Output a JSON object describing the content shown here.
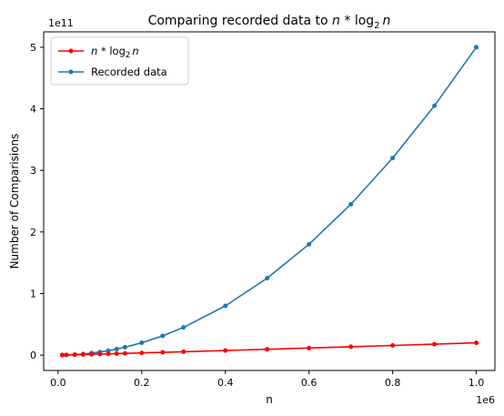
{
  "chart_data": {
    "type": "line",
    "title": {
      "prefix": "Comparing recorded data to ",
      "var_n": "n",
      "op": " * ",
      "log": "log",
      "log_base": "2",
      "var_n2": "n"
    },
    "xlabel": "n",
    "ylabel": "Number of Comparisions",
    "x_offset_label": "1e6",
    "y_offset_label": "1e11",
    "xlim": [
      -0.0345,
      1.0445
    ],
    "ylim": [
      -0.25,
      5.25
    ],
    "x_ticks": [
      0.0,
      0.2,
      0.4,
      0.6,
      0.8,
      1.0
    ],
    "x_tick_labels": [
      "0.0",
      "0.2",
      "0.4",
      "0.6",
      "0.8",
      "1.0"
    ],
    "y_ticks": [
      0,
      1,
      2,
      3,
      4,
      5
    ],
    "y_tick_labels": [
      "0",
      "1",
      "2",
      "3",
      "4",
      "5"
    ],
    "x_scale_note": "x values in units of 1e6",
    "y_scale_note": "y values in units of 1e11",
    "legend_position": "top-left",
    "grid": false,
    "series": [
      {
        "name": "n * log2 n",
        "legend": {
          "var_n": "n",
          "op": " * ",
          "log": "log",
          "log_base": "2",
          "var_n2": "n"
        },
        "color": "#ff0000",
        "marker": "dot",
        "x": [
          0.01,
          0.02,
          0.04,
          0.06,
          0.08,
          0.1,
          0.12,
          0.14,
          0.16,
          0.2,
          0.25,
          0.3,
          0.4,
          0.5,
          0.6,
          0.7,
          0.8,
          0.9,
          1.0
        ],
        "y": [
          0.0013,
          0.0029,
          0.0061,
          0.0095,
          0.013,
          0.0166,
          0.0203,
          0.0239,
          0.0276,
          0.0352,
          0.0448,
          0.0546,
          0.0744,
          0.0946,
          0.1151,
          0.1358,
          0.1567,
          0.1778,
          0.1993
        ]
      },
      {
        "name": "Recorded data",
        "color": "#1f77b4",
        "marker": "dot",
        "x": [
          0.01,
          0.02,
          0.04,
          0.06,
          0.08,
          0.1,
          0.12,
          0.14,
          0.16,
          0.2,
          0.25,
          0.3,
          0.4,
          0.5,
          0.6,
          0.7,
          0.8,
          0.9,
          1.0
        ],
        "y": [
          0.0005,
          0.002,
          0.008,
          0.018,
          0.032,
          0.05,
          0.072,
          0.098,
          0.128,
          0.2,
          0.3125,
          0.45,
          0.8,
          1.25,
          1.8,
          2.45,
          3.2,
          4.05,
          5.0
        ]
      }
    ]
  }
}
